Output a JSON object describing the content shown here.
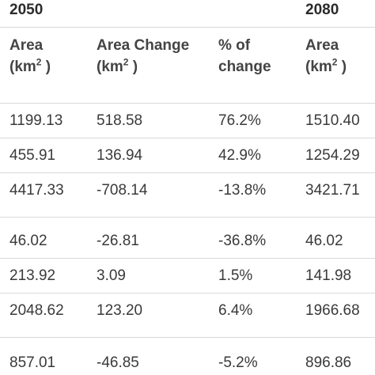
{
  "years": [
    "2050",
    "2080"
  ],
  "headers": {
    "area": {
      "line1": "Area",
      "unit": "km",
      "sup": "2"
    },
    "area_change": {
      "line1": "Area Change",
      "unit": "km",
      "sup": "2"
    },
    "pct": {
      "line1": "% of",
      "line2": "change"
    },
    "area2": {
      "line1": "Area",
      "unit": "km",
      "sup": "2"
    }
  },
  "rows": [
    [
      "1199.13",
      "518.58",
      "76.2%",
      "1510.40"
    ],
    [
      "455.91",
      "136.94",
      "42.9%",
      "1254.29"
    ],
    [
      "4417.33",
      "-708.14",
      "-13.8%",
      "3421.71"
    ],
    [
      "46.02",
      "-26.81",
      "-36.8%",
      "46.02"
    ],
    [
      "213.92",
      "3.09",
      "1.5%",
      "141.98"
    ],
    [
      "2048.62",
      "123.20",
      "6.4%",
      "1966.68"
    ],
    [
      "857.01",
      "-46.85",
      "-5.2%",
      "896.86"
    ]
  ]
}
